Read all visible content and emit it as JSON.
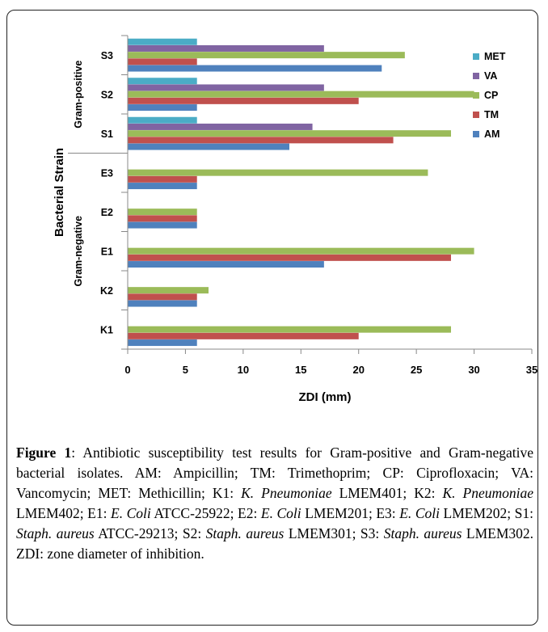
{
  "chart_data": {
    "type": "bar",
    "orientation": "horizontal",
    "title": "",
    "xlabel": "ZDI (mm)",
    "ylabel": "Bacterial Strain",
    "xlim": [
      0,
      35
    ],
    "xticks": [
      0,
      5,
      10,
      15,
      20,
      25,
      30,
      35
    ],
    "grid": false,
    "legend_position": "right",
    "categories": [
      "S3",
      "S2",
      "S1",
      "E3",
      "E2",
      "E1",
      "K2",
      "K1"
    ],
    "groups": [
      {
        "label": "Gram-positive",
        "categories": [
          "S3",
          "S2",
          "S1"
        ]
      },
      {
        "label": "Gram-negative",
        "categories": [
          "E3",
          "E2",
          "E1",
          "K2",
          "K1"
        ]
      }
    ],
    "series": [
      {
        "name": "MET",
        "color": "#4BACC6",
        "values": [
          6,
          6,
          6,
          0,
          0,
          0,
          0,
          0
        ]
      },
      {
        "name": "VA",
        "color": "#8064A2",
        "values": [
          17,
          17,
          16,
          0,
          0,
          0,
          0,
          0
        ]
      },
      {
        "name": "CP",
        "color": "#9BBB59",
        "values": [
          24,
          30,
          28,
          26,
          6,
          30,
          7,
          28
        ]
      },
      {
        "name": "TM",
        "color": "#C0504D",
        "values": [
          6,
          20,
          23,
          6,
          6,
          28,
          6,
          20
        ]
      },
      {
        "name": "AM",
        "color": "#4F81BD",
        "values": [
          22,
          6,
          14,
          6,
          6,
          17,
          6,
          6
        ]
      }
    ]
  },
  "caption": {
    "label": "Figure 1",
    "sep": ": ",
    "segments": [
      {
        "t": "Antibiotic susceptibility test results for Gram-positive and Gram-negative  bacterial isolates. AM: Ampicillin; TM: Trimethoprim; CP: Ciprofloxacin; VA: Vancomycin; MET: Methicillin; K1: ",
        "i": false
      },
      {
        "t": "K. Pneumoniae",
        "i": true
      },
      {
        "t": " LMEM401; K2: ",
        "i": false
      },
      {
        "t": "K. Pneumoniae",
        "i": true
      },
      {
        "t": " LMEM402; E1: ",
        "i": false
      },
      {
        "t": "E. Coli",
        "i": true
      },
      {
        "t": " ATCC-25922; E2: ",
        "i": false
      },
      {
        "t": "E. Coli",
        "i": true
      },
      {
        "t": " LMEM201; E3: ",
        "i": false
      },
      {
        "t": "E. Coli",
        "i": true
      },
      {
        "t": " LMEM202; S1: ",
        "i": false
      },
      {
        "t": "Staph. aureus",
        "i": true
      },
      {
        "t": " ATCC-29213; S2: ",
        "i": false
      },
      {
        "t": "Staph. aureus",
        "i": true
      },
      {
        "t": " LMEM301; S3: ",
        "i": false
      },
      {
        "t": "Staph. aureus",
        "i": true
      },
      {
        "t": " LMEM302. ZDI: zone diameter of inhibition.",
        "i": false
      }
    ]
  }
}
